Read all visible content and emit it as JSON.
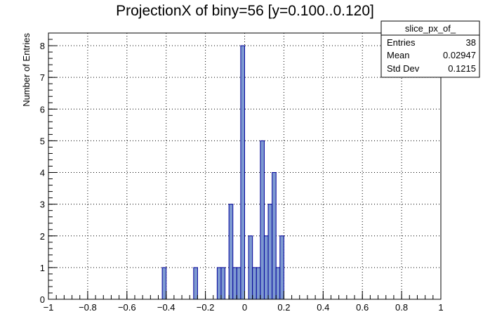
{
  "chart_data": {
    "type": "bar",
    "title": "ProjectionX of biny=56 [y=0.100..0.120]",
    "xlabel": "",
    "ylabel": "Number of Entries",
    "xlim": [
      -1,
      1
    ],
    "ylim": [
      0,
      8.4
    ],
    "bin_width": 0.02,
    "grid": true,
    "x_ticks": [
      {
        "value": -1,
        "label": "−1"
      },
      {
        "value": -0.8,
        "label": "−0.8"
      },
      {
        "value": -0.6,
        "label": "−0.6"
      },
      {
        "value": -0.4,
        "label": "−0.4"
      },
      {
        "value": -0.2,
        "label": "−0.2"
      },
      {
        "value": 0,
        "label": "0"
      },
      {
        "value": 0.2,
        "label": "0.2"
      },
      {
        "value": 0.4,
        "label": "0.4"
      },
      {
        "value": 0.6,
        "label": "0.6"
      },
      {
        "value": 0.8,
        "label": "0.8"
      },
      {
        "value": 1,
        "label": "1"
      }
    ],
    "y_ticks": [
      {
        "value": 0,
        "label": "0"
      },
      {
        "value": 1,
        "label": "1"
      },
      {
        "value": 2,
        "label": "2"
      },
      {
        "value": 3,
        "label": "3"
      },
      {
        "value": 4,
        "label": "4"
      },
      {
        "value": 5,
        "label": "5"
      },
      {
        "value": 6,
        "label": "6"
      },
      {
        "value": 7,
        "label": "7"
      },
      {
        "value": 8,
        "label": "8"
      }
    ],
    "bins": [
      {
        "x_low": -0.42,
        "value": 1
      },
      {
        "x_low": -0.26,
        "value": 1
      },
      {
        "x_low": -0.14,
        "value": 1
      },
      {
        "x_low": -0.12,
        "value": 1
      },
      {
        "x_low": -0.08,
        "value": 3
      },
      {
        "x_low": -0.06,
        "value": 1
      },
      {
        "x_low": -0.04,
        "value": 1
      },
      {
        "x_low": -0.02,
        "value": 8
      },
      {
        "x_low": 0.02,
        "value": 2
      },
      {
        "x_low": 0.04,
        "value": 1
      },
      {
        "x_low": 0.06,
        "value": 1
      },
      {
        "x_low": 0.08,
        "value": 5
      },
      {
        "x_low": 0.1,
        "value": 2
      },
      {
        "x_low": 0.12,
        "value": 3
      },
      {
        "x_low": 0.14,
        "value": 4
      },
      {
        "x_low": 0.16,
        "value": 1
      },
      {
        "x_low": 0.18,
        "value": 2
      }
    ],
    "colors": {
      "fill": "#7d99d1",
      "line": "#000099"
    },
    "stats_box": {
      "name": "slice_px_of_",
      "rows": [
        {
          "label": "Entries",
          "value": "38"
        },
        {
          "label": "Mean",
          "value": "0.02947"
        },
        {
          "label": "Std Dev",
          "value": "0.1215"
        }
      ]
    }
  }
}
